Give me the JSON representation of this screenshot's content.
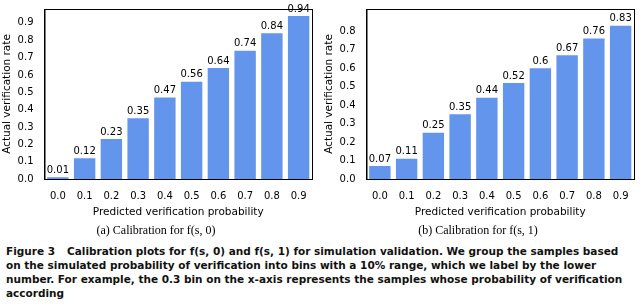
{
  "chart_data": [
    {
      "type": "bar",
      "title": "(a) Calibration for f(s, 0)",
      "x_label": "Predicted verification probability",
      "y_label": "Actual verification rate",
      "categories": [
        "0.0",
        "0.1",
        "0.2",
        "0.3",
        "0.4",
        "0.5",
        "0.6",
        "0.7",
        "0.8",
        "0.9"
      ],
      "values": [
        0.01,
        0.12,
        0.23,
        0.35,
        0.47,
        0.56,
        0.64,
        0.74,
        0.84,
        0.94
      ],
      "color": "#6495ed",
      "data_labels": true,
      "grid": false,
      "ylim": [
        0,
        0.98
      ],
      "yticks": [
        {
          "value": 0,
          "label": "0.0"
        },
        0.1,
        0.2,
        0.3,
        0.4,
        0.5,
        0.6,
        0.7,
        0.8,
        0.9
      ]
    },
    {
      "type": "bar",
      "title": "(b) Calibration for f(s, 1)",
      "x_label": "Predicted verification probability",
      "y_label": "Actual verification rate",
      "categories": [
        "0.0",
        "0.1",
        "0.2",
        "0.3",
        "0.4",
        "0.5",
        "0.6",
        "0.7",
        "0.8",
        "0.9"
      ],
      "values": [
        0.07,
        0.11,
        0.25,
        0.35,
        0.44,
        0.52,
        0.6,
        0.67,
        0.76,
        0.83
      ],
      "color": "#6495ed",
      "data_labels": true,
      "grid": false,
      "ylim": [
        0,
        0.92
      ],
      "yticks": [
        {
          "value": 0,
          "label": "0.0"
        },
        0.1,
        0.2,
        0.3,
        0.4,
        0.5,
        0.6,
        0.7,
        0.8
      ]
    }
  ],
  "figure_caption": {
    "label": "Figure 3",
    "text": "Calibration plots for f(s, 0) and f(s, 1) for simulation validation. We group the samples based on the simulated probability of verification into bins with a 10% range, which we label by the lower number. For example, the 0.3 bin on the x-axis represents the samples whose probability of verification according"
  }
}
